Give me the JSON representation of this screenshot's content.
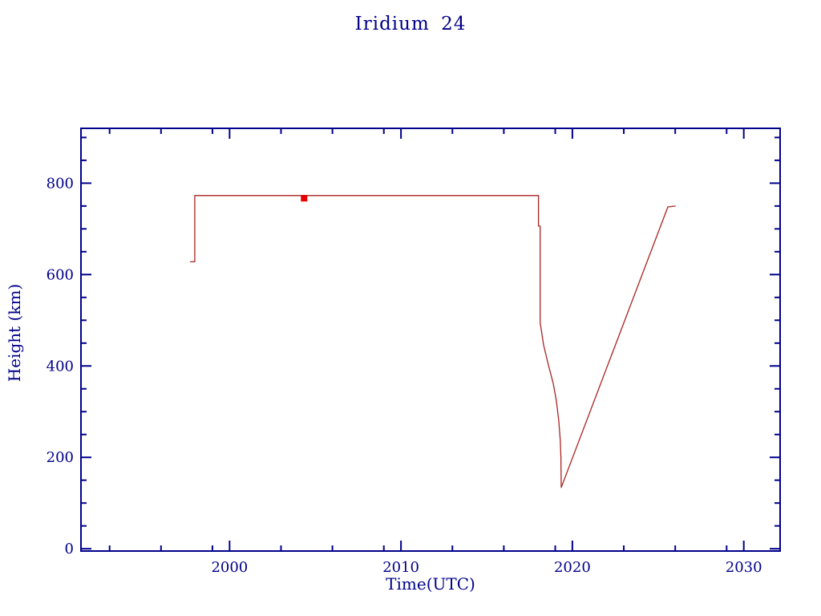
{
  "page": {
    "background": "#ffffff"
  },
  "chart_data": {
    "type": "line",
    "title": "Iridium 24",
    "xlabel": "Time(UTC)",
    "ylabel": "Height (km)",
    "axis_color": "#00008b",
    "grid": false,
    "legend": "none",
    "xlim": [
      1991.33,
      2032.12
    ],
    "ylim": [
      -5,
      920
    ],
    "x_ticks": {
      "major": [
        {
          "value": 2000,
          "label": "2000"
        },
        {
          "value": 2010,
          "label": "2010"
        },
        {
          "value": 2020,
          "label": "2020"
        },
        {
          "value": 2030,
          "label": "2030"
        }
      ],
      "minor": [
        1993,
        1996,
        1999,
        2003,
        2006,
        2009,
        2013,
        2016,
        2019,
        2023,
        2026,
        2029
      ]
    },
    "y_ticks": {
      "major": [
        {
          "value": 0,
          "label": "0"
        },
        {
          "value": 200,
          "label": "200"
        },
        {
          "value": 400,
          "label": "400"
        },
        {
          "value": 600,
          "label": "600"
        },
        {
          "value": 800,
          "label": "800"
        }
      ],
      "minor": [
        50,
        100,
        150,
        250,
        300,
        350,
        450,
        500,
        550,
        650,
        700,
        750,
        850,
        900
      ]
    },
    "series": [
      {
        "name": "height-profile",
        "style": "line",
        "color": "#aa2222",
        "points": [
          [
            1997.72,
            628
          ],
          [
            1997.97,
            628
          ],
          [
            1997.97,
            773
          ],
          [
            2018.02,
            773
          ],
          [
            2018.02,
            706
          ],
          [
            2018.12,
            706
          ],
          [
            2018.12,
            495
          ],
          [
            2018.32,
            446
          ],
          [
            2018.6,
            402
          ],
          [
            2018.88,
            362
          ],
          [
            2019.07,
            323
          ],
          [
            2019.21,
            279
          ],
          [
            2019.3,
            235
          ],
          [
            2019.33,
            200
          ],
          [
            2019.35,
            134
          ],
          [
            2025.57,
            748
          ],
          [
            2026.0,
            750
          ]
        ]
      },
      {
        "name": "event-marker",
        "style": "square-marker",
        "color": "#e60000",
        "size": 8,
        "points": [
          [
            2004.35,
            767
          ]
        ]
      }
    ]
  }
}
